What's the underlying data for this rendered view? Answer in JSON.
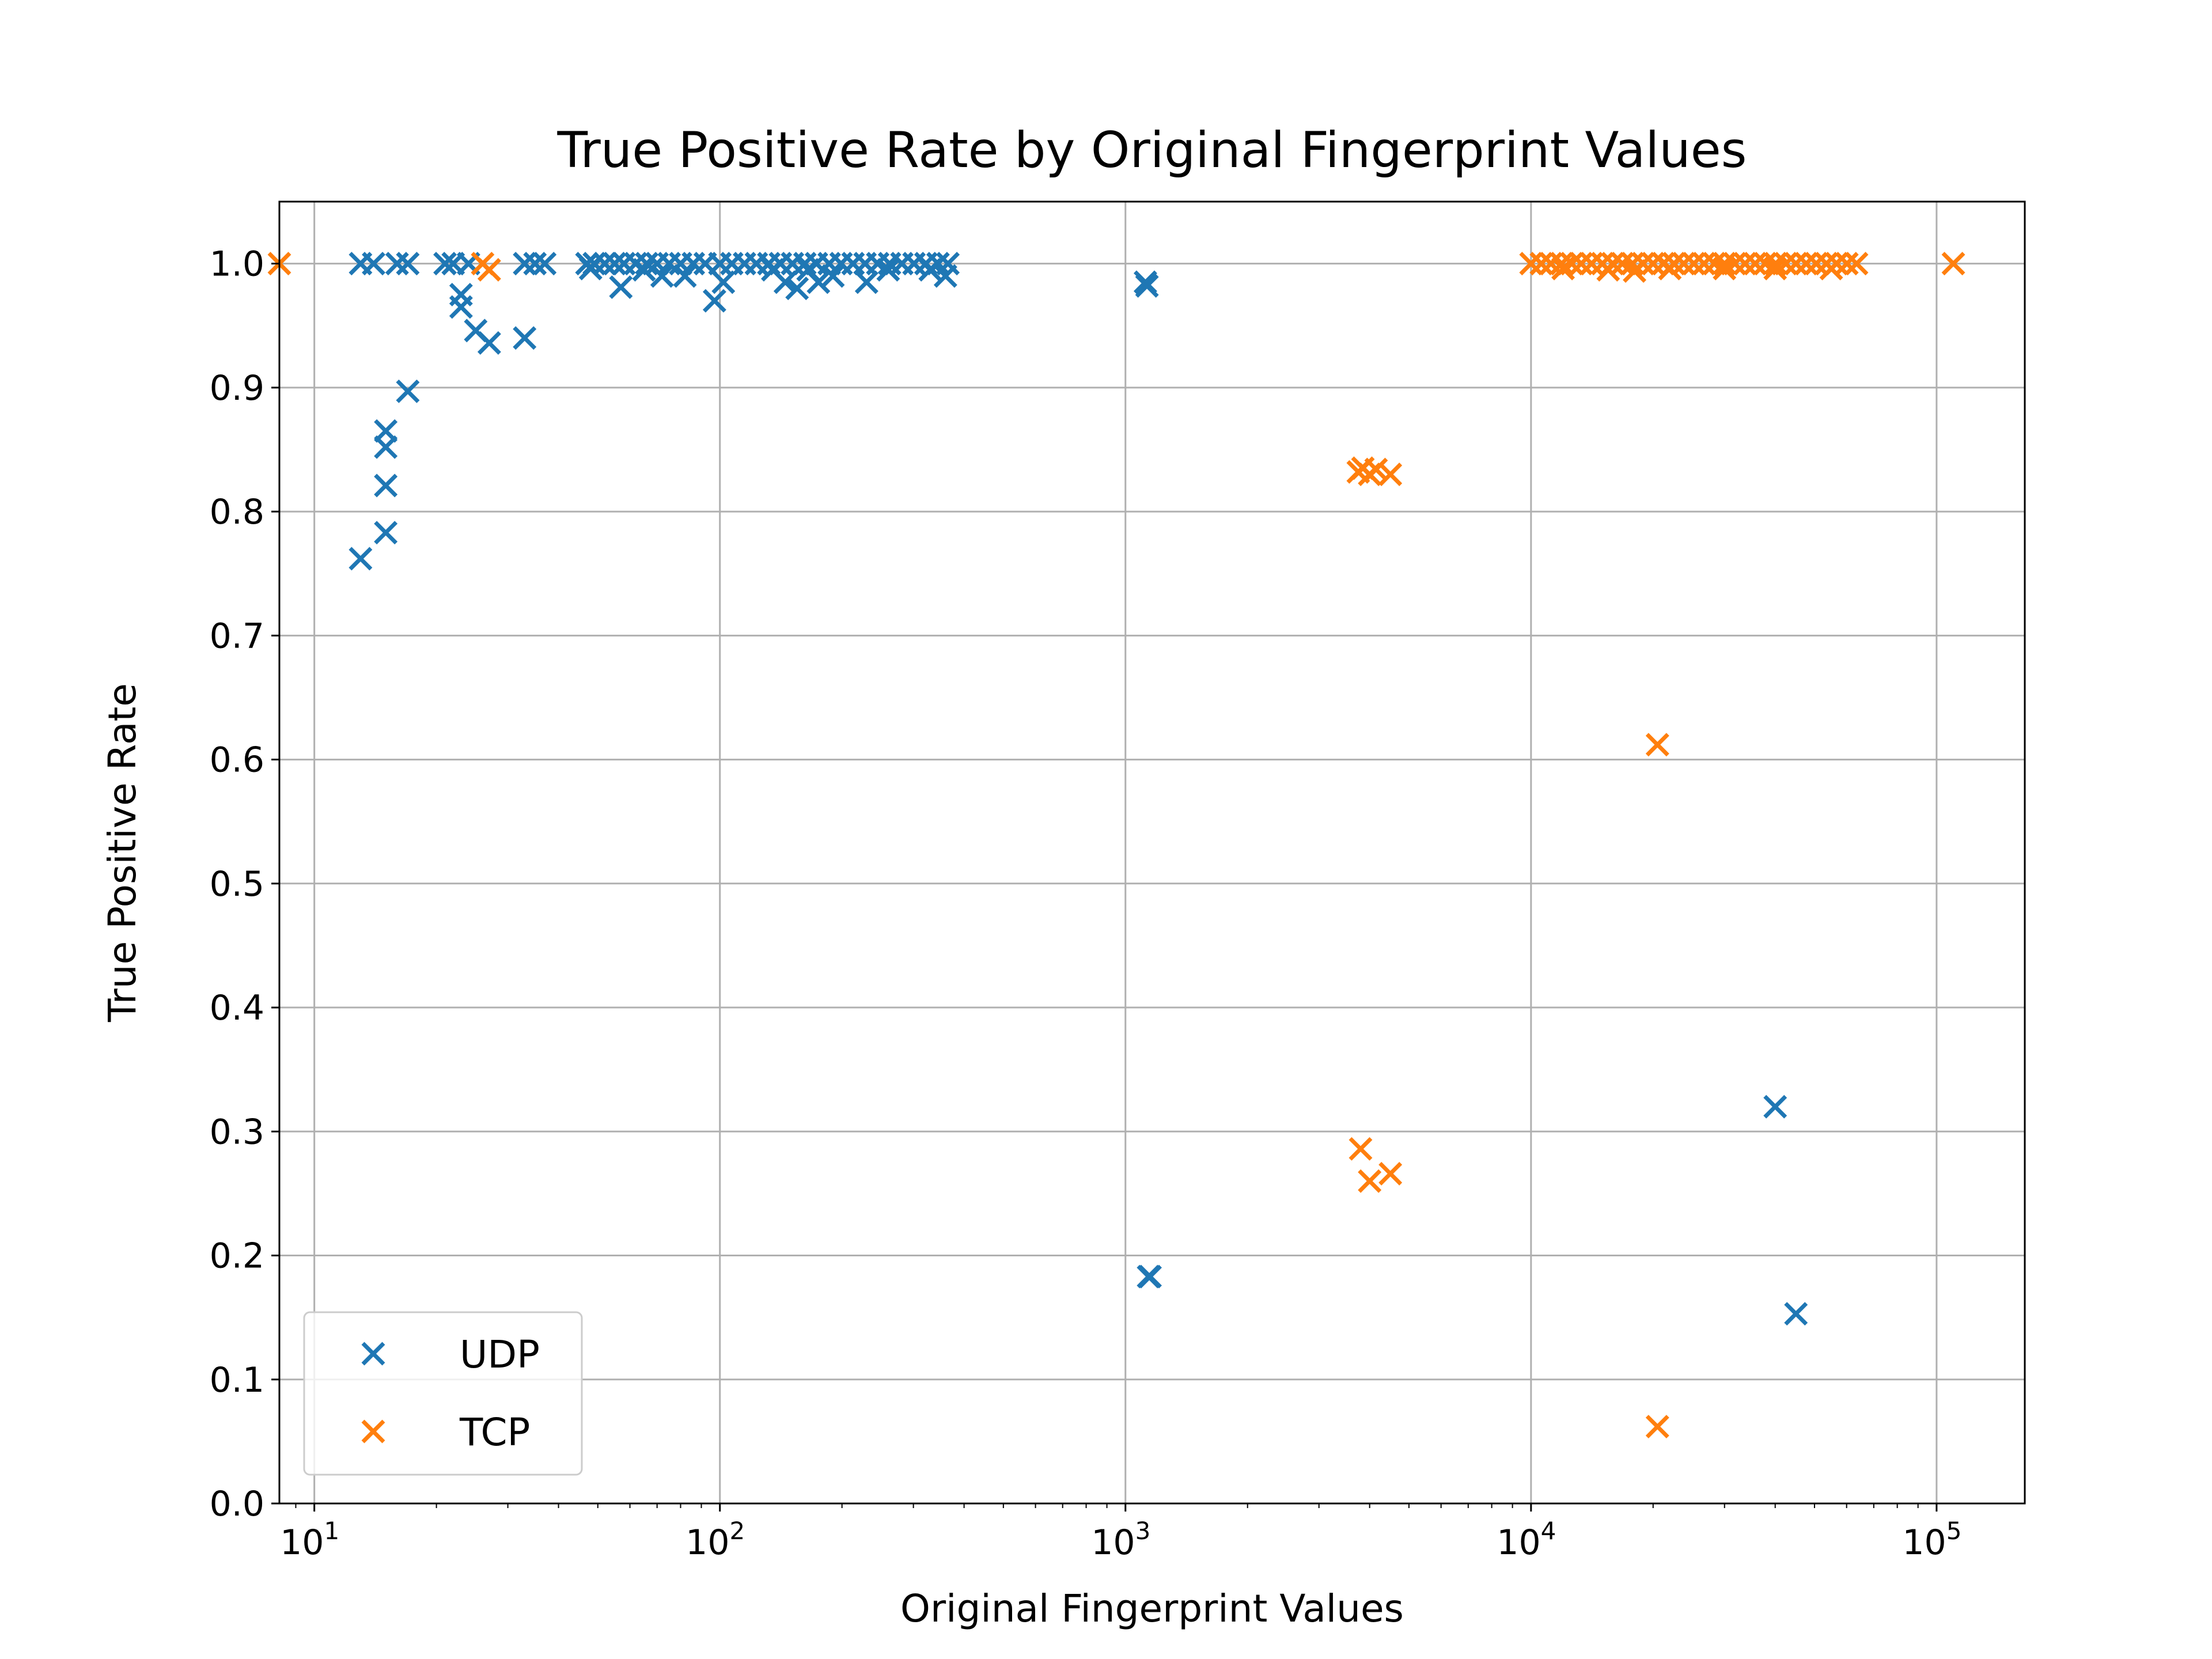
{
  "chart_data": {
    "type": "scatter",
    "title": "True Positive Rate by Original Fingerprint Values",
    "xlabel": "Original Fingerprint Values",
    "ylabel": "True Positive Rate",
    "xscale": "log",
    "xlim": [
      8.2,
      165000
    ],
    "ylim": [
      0.0,
      1.05
    ],
    "grid": true,
    "legend_position": "lower-left",
    "xticks": [
      {
        "value": 10,
        "base": "10",
        "exp": "1"
      },
      {
        "value": 100,
        "base": "10",
        "exp": "2"
      },
      {
        "value": 1000,
        "base": "10",
        "exp": "3"
      },
      {
        "value": 10000,
        "base": "10",
        "exp": "4"
      },
      {
        "value": 100000,
        "base": "10",
        "exp": "5"
      }
    ],
    "yticks": [
      {
        "value": 0.0,
        "label": "0.0"
      },
      {
        "value": 0.1,
        "label": "0.1"
      },
      {
        "value": 0.2,
        "label": "0.2"
      },
      {
        "value": 0.3,
        "label": "0.3"
      },
      {
        "value": 0.4,
        "label": "0.4"
      },
      {
        "value": 0.5,
        "label": "0.5"
      },
      {
        "value": 0.6,
        "label": "0.6"
      },
      {
        "value": 0.7,
        "label": "0.7"
      },
      {
        "value": 0.8,
        "label": "0.8"
      },
      {
        "value": 0.9,
        "label": "0.9"
      },
      {
        "value": 1.0,
        "label": "1.0"
      }
    ],
    "series": [
      {
        "name": "UDP",
        "color": "#1f77b4",
        "marker": "x",
        "points": [
          [
            13,
            1.0
          ],
          [
            14,
            1.0
          ],
          [
            16,
            1.0
          ],
          [
            17,
            1.0
          ],
          [
            21,
            1.0
          ],
          [
            22,
            1.0
          ],
          [
            24,
            1.0
          ],
          [
            13,
            0.762
          ],
          [
            15,
            0.783
          ],
          [
            15,
            0.821
          ],
          [
            15,
            0.852
          ],
          [
            15,
            0.865
          ],
          [
            17,
            0.897
          ],
          [
            23,
            0.965
          ],
          [
            23,
            0.975
          ],
          [
            25,
            0.946
          ],
          [
            27,
            0.936
          ],
          [
            33,
            0.94
          ],
          [
            33,
            1.0
          ],
          [
            35,
            1.0
          ],
          [
            37,
            1.0
          ],
          [
            47,
            1.0
          ],
          [
            49,
            1.0
          ],
          [
            52,
            1.0
          ],
          [
            55,
            1.0
          ],
          [
            58,
            1.0
          ],
          [
            62,
            1.0
          ],
          [
            66,
            1.0
          ],
          [
            70,
            1.0
          ],
          [
            75,
            1.0
          ],
          [
            80,
            1.0
          ],
          [
            86,
            1.0
          ],
          [
            92,
            1.0
          ],
          [
            100,
            1.0
          ],
          [
            107,
            1.0
          ],
          [
            115,
            1.0
          ],
          [
            123,
            1.0
          ],
          [
            132,
            1.0
          ],
          [
            141,
            1.0
          ],
          [
            151,
            1.0
          ],
          [
            162,
            1.0
          ],
          [
            173,
            1.0
          ],
          [
            186,
            1.0
          ],
          [
            199,
            1.0
          ],
          [
            213,
            1.0
          ],
          [
            228,
            1.0
          ],
          [
            245,
            1.0
          ],
          [
            262,
            1.0
          ],
          [
            281,
            1.0
          ],
          [
            301,
            1.0
          ],
          [
            322,
            1.0
          ],
          [
            345,
            1.0
          ],
          [
            365,
            1.0
          ],
          [
            48,
            0.996
          ],
          [
            57,
            0.981
          ],
          [
            65,
            0.995
          ],
          [
            72,
            0.99
          ],
          [
            82,
            0.99
          ],
          [
            97,
            0.97
          ],
          [
            102,
            0.985
          ],
          [
            135,
            0.995
          ],
          [
            145,
            0.985
          ],
          [
            155,
            0.98
          ],
          [
            165,
            0.995
          ],
          [
            175,
            0.985
          ],
          [
            190,
            0.99
          ],
          [
            230,
            0.985
          ],
          [
            260,
            0.995
          ],
          [
            330,
            0.995
          ],
          [
            360,
            0.99
          ],
          [
            1120,
            0.985
          ],
          [
            1130,
            0.982
          ],
          [
            1140,
            0.183
          ],
          [
            1150,
            0.183
          ],
          [
            40000,
            0.32
          ],
          [
            45000,
            0.153
          ]
        ]
      },
      {
        "name": "TCP",
        "color": "#ff7f0e",
        "marker": "x",
        "points": [
          [
            8.2,
            1.0
          ],
          [
            26,
            1.0
          ],
          [
            27,
            0.995
          ],
          [
            3750,
            0.832
          ],
          [
            3850,
            0.835
          ],
          [
            4000,
            0.83
          ],
          [
            4150,
            0.834
          ],
          [
            4500,
            0.83
          ],
          [
            3800,
            0.286
          ],
          [
            4000,
            0.26
          ],
          [
            4500,
            0.266
          ],
          [
            20500,
            0.612
          ],
          [
            20500,
            0.062
          ],
          [
            10000,
            1.0
          ],
          [
            10600,
            1.0
          ],
          [
            11200,
            1.0
          ],
          [
            11900,
            1.0
          ],
          [
            12600,
            1.0
          ],
          [
            13300,
            1.0
          ],
          [
            14100,
            1.0
          ],
          [
            15000,
            1.0
          ],
          [
            15900,
            1.0
          ],
          [
            16800,
            1.0
          ],
          [
            17800,
            1.0
          ],
          [
            18900,
            1.0
          ],
          [
            20000,
            1.0
          ],
          [
            21200,
            1.0
          ],
          [
            22500,
            1.0
          ],
          [
            23800,
            1.0
          ],
          [
            25200,
            1.0
          ],
          [
            26700,
            1.0
          ],
          [
            28300,
            1.0
          ],
          [
            30000,
            1.0
          ],
          [
            31800,
            1.0
          ],
          [
            33700,
            1.0
          ],
          [
            35700,
            1.0
          ],
          [
            37800,
            1.0
          ],
          [
            40100,
            1.0
          ],
          [
            42500,
            1.0
          ],
          [
            45000,
            1.0
          ],
          [
            47700,
            1.0
          ],
          [
            50500,
            1.0
          ],
          [
            53500,
            1.0
          ],
          [
            56700,
            1.0
          ],
          [
            60100,
            1.0
          ],
          [
            63500,
            1.0
          ],
          [
            12000,
            0.996
          ],
          [
            15500,
            0.995
          ],
          [
            18000,
            0.994
          ],
          [
            22000,
            0.996
          ],
          [
            30000,
            0.996
          ],
          [
            40000,
            0.996
          ],
          [
            55000,
            0.996
          ],
          [
            110000,
            1.0
          ]
        ]
      }
    ]
  }
}
